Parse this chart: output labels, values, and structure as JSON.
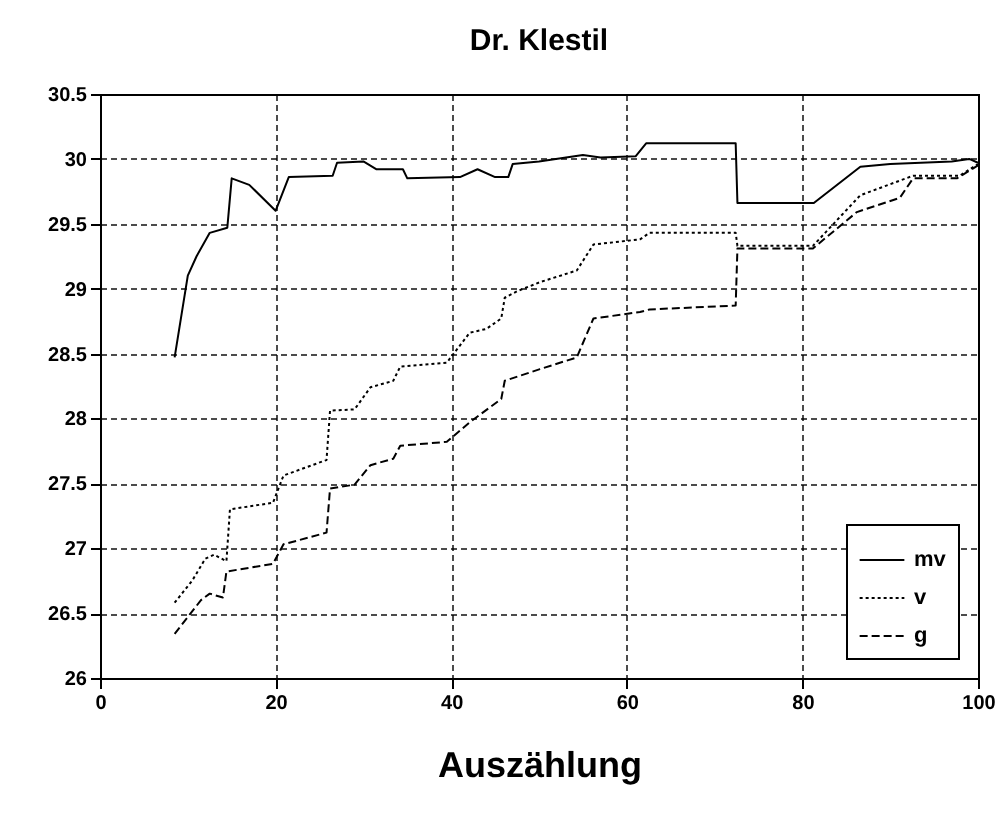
{
  "chart_data": {
    "type": "line",
    "title": "Dr. Klestil",
    "xlabel": "Auszählung",
    "xlim": [
      0,
      100
    ],
    "xticks": [
      0,
      20,
      40,
      60,
      80,
      100
    ],
    "ylim": [
      26,
      30.5
    ],
    "yticks": [
      26,
      26.5,
      27,
      27.5,
      28,
      28.5,
      29,
      29.5,
      30,
      30.5
    ],
    "grid": true,
    "legend": "bottom right",
    "series": [
      {
        "name": "mv",
        "color": "#000000",
        "line_style": "solid",
        "x": [
          8.5,
          10,
          11,
          12.5,
          14.5,
          15,
          17,
          20,
          21.5,
          26.5,
          27,
          30,
          31.5,
          34.5,
          35,
          41,
          43,
          45,
          46.5,
          47,
          50,
          55,
          57,
          61,
          62.2,
          72.4,
          72.6,
          81.3,
          86.6,
          90,
          97,
          99,
          100
        ],
        "values": [
          28.47,
          29.1,
          29.25,
          29.43,
          29.47,
          29.85,
          29.8,
          29.6,
          29.86,
          29.87,
          29.97,
          29.98,
          29.92,
          29.92,
          29.85,
          29.86,
          29.92,
          29.86,
          29.86,
          29.96,
          29.98,
          30.03,
          30.01,
          30.02,
          30.12,
          30.12,
          29.66,
          29.66,
          29.94,
          29.96,
          29.98,
          30,
          29.97
        ]
      },
      {
        "name": "v",
        "color": "#000000",
        "line_style": "dotted",
        "x": [
          8.5,
          10.5,
          12,
          13,
          14.4,
          14.8,
          19.7,
          20.9,
          25.8,
          26.2,
          29,
          30.8,
          33.4,
          34.2,
          39.5,
          42.1,
          44,
          45.7,
          46.1,
          47.5,
          50.1,
          54.3,
          56.2,
          61.5,
          62.6,
          72.4,
          72.6,
          81.2,
          86.6,
          92.6,
          97.9,
          100
        ],
        "values": [
          26.58,
          26.75,
          26.92,
          26.95,
          26.9,
          27.3,
          27.35,
          27.56,
          27.68,
          28.06,
          28.07,
          28.24,
          28.29,
          28.4,
          28.43,
          28.66,
          28.69,
          28.77,
          28.93,
          28.98,
          29.05,
          29.14,
          29.34,
          29.38,
          29.43,
          29.43,
          29.33,
          29.33,
          29.72,
          29.87,
          29.87,
          29.96
        ]
      },
      {
        "name": "g",
        "color": "#000000",
        "line_style": "dashed",
        "x": [
          8.5,
          11.5,
          12.5,
          14,
          14.4,
          19.7,
          20.9,
          25.8,
          26.2,
          29,
          30.8,
          33.4,
          34.2,
          39.5,
          42.1,
          45.7,
          46.1,
          50.1,
          54.3,
          56.2,
          61.5,
          62.6,
          72.4,
          72.6,
          81.2,
          86.2,
          91.1,
          92.6,
          97.6,
          100
        ],
        "values": [
          26.34,
          26.6,
          26.65,
          26.62,
          26.82,
          26.88,
          27.03,
          27.12,
          27.46,
          27.49,
          27.64,
          27.69,
          27.79,
          27.82,
          27.97,
          28.15,
          28.29,
          28.38,
          28.47,
          28.77,
          28.82,
          28.84,
          28.87,
          29.31,
          29.31,
          29.59,
          29.7,
          29.85,
          29.85,
          29.95
        ]
      }
    ]
  }
}
